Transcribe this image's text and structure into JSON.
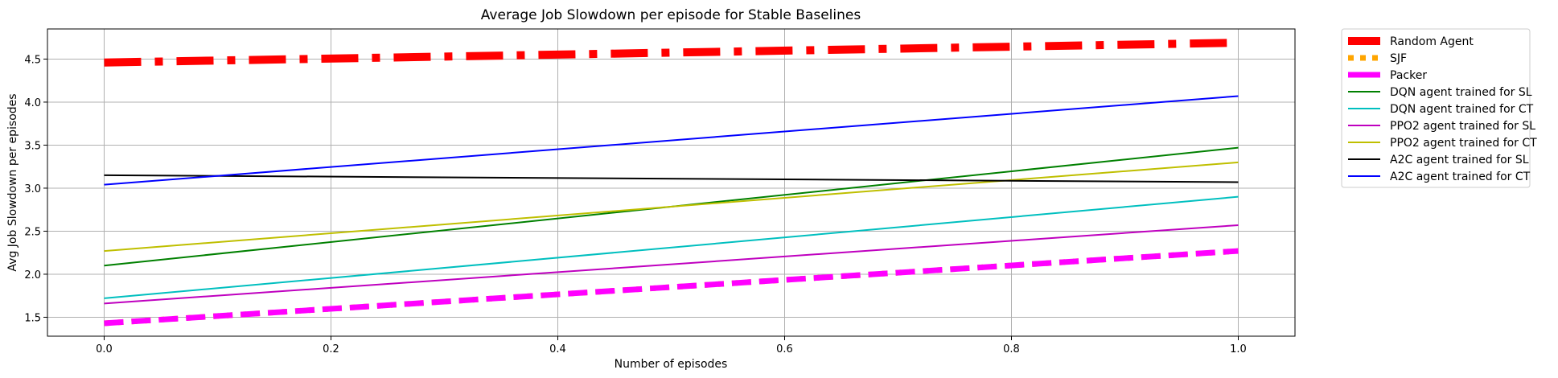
{
  "chart_data": {
    "type": "line",
    "title": "Average Job Slowdown per episode for Stable Baselines",
    "xlabel": "Number of episodes",
    "ylabel": "Avg Job Slowdown per episodes",
    "xlim": [
      -0.05,
      1.05
    ],
    "ylim": [
      1.28,
      4.85
    ],
    "xticks": [
      0.0,
      0.2,
      0.4,
      0.6,
      0.8,
      1.0
    ],
    "xtick_labels": [
      "0.0",
      "0.2",
      "0.4",
      "0.6",
      "0.8",
      "1.0"
    ],
    "yticks": [
      1.5,
      2.0,
      2.5,
      3.0,
      3.5,
      4.0,
      4.5
    ],
    "ytick_labels": [
      "1.5",
      "2.0",
      "2.5",
      "3.0",
      "3.5",
      "4.0",
      "4.5"
    ],
    "grid": true,
    "legend_position": "outside-right",
    "series": [
      {
        "name": "Random Agent",
        "color": "#ff0000",
        "style": "dashdot-thick",
        "x": [
          0.0,
          1.0
        ],
        "y": [
          4.46,
          4.69
        ]
      },
      {
        "name": "SJF",
        "color": "#ffa500",
        "style": "dotted-thick",
        "x": [
          0.0,
          1.0
        ],
        "y": [
          1.43,
          2.27
        ]
      },
      {
        "name": "Packer",
        "color": "#ff00ff",
        "style": "dashed-thick",
        "x": [
          0.0,
          1.0
        ],
        "y": [
          1.43,
          2.27
        ]
      },
      {
        "name": "DQN agent trained for SL",
        "color": "#008000",
        "style": "solid",
        "x": [
          0.0,
          1.0
        ],
        "y": [
          2.1,
          3.47
        ]
      },
      {
        "name": "DQN agent trained for CT",
        "color": "#00bfbf",
        "style": "solid",
        "x": [
          0.0,
          1.0
        ],
        "y": [
          1.72,
          2.9
        ]
      },
      {
        "name": "PPO2 agent trained for SL",
        "color": "#bf00bf",
        "style": "solid",
        "x": [
          0.0,
          1.0
        ],
        "y": [
          1.66,
          2.57
        ]
      },
      {
        "name": "PPO2 agent trained for CT",
        "color": "#bfbf00",
        "style": "solid",
        "x": [
          0.0,
          1.0
        ],
        "y": [
          2.27,
          3.3
        ]
      },
      {
        "name": "A2C agent trained for SL",
        "color": "#000000",
        "style": "solid",
        "x": [
          0.0,
          1.0
        ],
        "y": [
          3.15,
          3.07
        ]
      },
      {
        "name": "A2C agent trained for CT",
        "color": "#0000ff",
        "style": "solid",
        "x": [
          0.0,
          1.0
        ],
        "y": [
          3.04,
          4.07
        ]
      }
    ]
  }
}
